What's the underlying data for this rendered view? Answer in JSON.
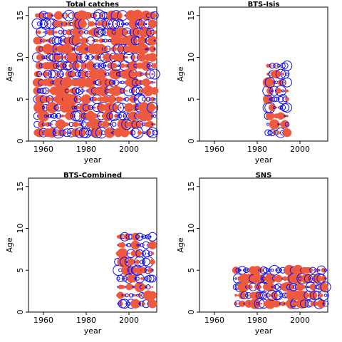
{
  "colors": {
    "positive": "#ef5a3f",
    "negative": "#1010ee",
    "axis": "#000000",
    "background": "#ffffff"
  },
  "chart_data": [
    {
      "type": "scatter",
      "title": "Total catches",
      "xlabel": "year",
      "ylabel": "Age",
      "xlim": [
        1953,
        2013
      ],
      "ylim": [
        0,
        16
      ],
      "xticks": [
        1960,
        1980,
        2000
      ],
      "yticks": [
        0,
        5,
        10,
        15
      ],
      "years": [
        1957,
        2012
      ],
      "ages": [
        1,
        15
      ],
      "grid": false,
      "encoding": "bubble plot of residuals: filled red = positive, open blue circle = negative, size = magnitude"
    },
    {
      "type": "scatter",
      "title": "BTS-Isis",
      "xlabel": "year",
      "ylabel": "Age",
      "xlim": [
        1953,
        2013
      ],
      "ylim": [
        0,
        16
      ],
      "xticks": [
        1960,
        1980,
        2000
      ],
      "yticks": [
        0,
        5,
        10,
        15
      ],
      "years": [
        1985,
        1994
      ],
      "ages": [
        1,
        9
      ],
      "grid": false,
      "encoding": "bubble plot of residuals: filled red = positive, open blue circle = negative, size = magnitude"
    },
    {
      "type": "scatter",
      "title": "BTS-Combined",
      "xlabel": "year",
      "ylabel": "Age",
      "xlim": [
        1953,
        2013
      ],
      "ylim": [
        0,
        16
      ],
      "xticks": [
        1960,
        1980,
        2000
      ],
      "yticks": [
        0,
        5,
        10,
        15
      ],
      "years": [
        1995,
        2011
      ],
      "ages": [
        1,
        9
      ],
      "grid": false,
      "encoding": "bubble plot of residuals: filled red = positive, open blue circle = negative, size = magnitude"
    },
    {
      "type": "scatter",
      "title": "SNS",
      "xlabel": "year",
      "ylabel": "Age",
      "xlim": [
        1953,
        2013
      ],
      "ylim": [
        0,
        16
      ],
      "xticks": [
        1960,
        1980,
        2000
      ],
      "yticks": [
        0,
        5,
        10,
        15
      ],
      "years": [
        1970,
        2012
      ],
      "ages": [
        1,
        5
      ],
      "grid": false,
      "encoding": "bubble plot of residuals: filled red = positive, open blue circle = negative, size = magnitude"
    }
  ]
}
